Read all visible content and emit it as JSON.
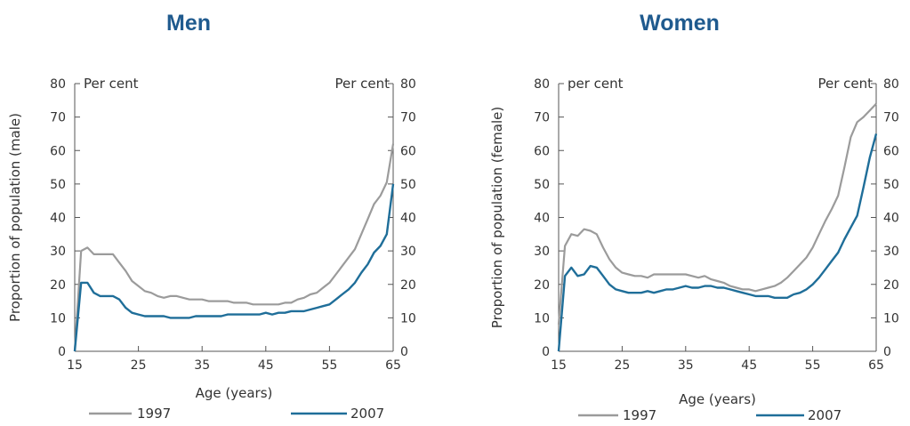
{
  "chart_data": [
    {
      "type": "line",
      "title": "Men",
      "xlabel": "Age (years)",
      "ylabel": "Proportion of population (male)",
      "unit_left": "Per cent",
      "unit_right": "Per cent",
      "xlim": [
        15,
        65
      ],
      "ylim": [
        0,
        80
      ],
      "xticks": [
        15,
        25,
        35,
        45,
        55,
        65
      ],
      "yticks": [
        0,
        10,
        20,
        30,
        40,
        50,
        60,
        70,
        80
      ],
      "legend_position": "bottom",
      "series": [
        {
          "name": "1997",
          "color": "#9b9b9b",
          "x": [
            15,
            16,
            17,
            18,
            19,
            20,
            21,
            22,
            23,
            24,
            25,
            26,
            27,
            28,
            29,
            30,
            31,
            32,
            33,
            34,
            35,
            36,
            37,
            38,
            39,
            40,
            41,
            42,
            43,
            44,
            45,
            46,
            47,
            48,
            49,
            50,
            51,
            52,
            53,
            54,
            55,
            56,
            57,
            58,
            59,
            60,
            61,
            62,
            63,
            64,
            65
          ],
          "y": [
            0,
            30,
            31,
            29,
            29,
            29,
            29,
            26.5,
            24,
            21,
            19.5,
            18,
            17.5,
            16.5,
            16,
            16.5,
            16.5,
            16,
            15.5,
            15.5,
            15.5,
            15,
            15,
            15,
            15,
            14.5,
            14.5,
            14.5,
            14,
            14,
            14,
            14,
            14,
            14.5,
            14.5,
            15.5,
            16,
            17,
            17.5,
            19,
            20.5,
            23,
            25.5,
            28,
            30.5,
            35,
            39.5,
            44,
            46.5,
            50.5,
            62
          ]
        },
        {
          "name": "2007",
          "color": "#1f6e99",
          "x": [
            15,
            16,
            17,
            18,
            19,
            20,
            21,
            22,
            23,
            24,
            25,
            26,
            27,
            28,
            29,
            30,
            31,
            32,
            33,
            34,
            35,
            36,
            37,
            38,
            39,
            40,
            41,
            42,
            43,
            44,
            45,
            46,
            47,
            48,
            49,
            50,
            51,
            52,
            53,
            54,
            55,
            56,
            57,
            58,
            59,
            60,
            61,
            62,
            63,
            64,
            65
          ],
          "y": [
            0,
            20.5,
            20.5,
            17.5,
            16.5,
            16.5,
            16.5,
            15.5,
            13,
            11.5,
            11,
            10.5,
            10.5,
            10.5,
            10.5,
            10,
            10,
            10,
            10,
            10.5,
            10.5,
            10.5,
            10.5,
            10.5,
            11,
            11,
            11,
            11,
            11,
            11,
            11.5,
            11,
            11.5,
            11.5,
            12,
            12,
            12,
            12.5,
            13,
            13.5,
            14,
            15.5,
            17,
            18.5,
            20.5,
            23.5,
            26,
            29.5,
            31.5,
            35,
            50
          ]
        }
      ]
    },
    {
      "type": "line",
      "title": "Women",
      "xlabel": "Age (years)",
      "ylabel": "Proportion of population (female)",
      "unit_left": "per cent",
      "unit_right": "Per cent",
      "xlim": [
        15,
        65
      ],
      "ylim": [
        0,
        80
      ],
      "xticks": [
        15,
        25,
        35,
        45,
        55,
        65
      ],
      "yticks": [
        0,
        10,
        20,
        30,
        40,
        50,
        60,
        70,
        80
      ],
      "legend_position": "bottom",
      "series": [
        {
          "name": "1997",
          "color": "#9b9b9b",
          "x": [
            15,
            16,
            17,
            18,
            19,
            20,
            21,
            22,
            23,
            24,
            25,
            26,
            27,
            28,
            29,
            30,
            31,
            32,
            33,
            34,
            35,
            36,
            37,
            38,
            39,
            40,
            41,
            42,
            43,
            44,
            45,
            46,
            47,
            48,
            49,
            50,
            51,
            52,
            53,
            54,
            55,
            56,
            57,
            58,
            59,
            60,
            61,
            62,
            63,
            64,
            65
          ],
          "y": [
            8,
            31.5,
            35,
            34.5,
            36.5,
            36,
            35,
            31,
            27.5,
            25,
            23.5,
            23,
            22.5,
            22.5,
            22,
            23,
            23,
            23,
            23,
            23,
            23,
            22.5,
            22,
            22.5,
            21.5,
            21,
            20.5,
            19.5,
            19,
            18.5,
            18.5,
            18,
            18.5,
            19,
            19.5,
            20.5,
            22,
            24,
            26,
            28,
            31,
            35,
            39,
            42.5,
            46.5,
            55,
            64,
            68.5,
            70,
            72,
            74
          ]
        },
        {
          "name": "2007",
          "color": "#1f6e99",
          "x": [
            15,
            16,
            17,
            18,
            19,
            20,
            21,
            22,
            23,
            24,
            25,
            26,
            27,
            28,
            29,
            30,
            31,
            32,
            33,
            34,
            35,
            36,
            37,
            38,
            39,
            40,
            41,
            42,
            43,
            44,
            45,
            46,
            47,
            48,
            49,
            50,
            51,
            52,
            53,
            54,
            55,
            56,
            57,
            58,
            59,
            60,
            61,
            62,
            63,
            64,
            65
          ],
          "y": [
            0,
            22.5,
            25,
            22.5,
            23,
            25.5,
            25,
            22.5,
            20,
            18.5,
            18,
            17.5,
            17.5,
            17.5,
            18,
            17.5,
            18,
            18.5,
            18.5,
            19,
            19.5,
            19,
            19,
            19.5,
            19.5,
            19,
            19,
            18.5,
            18,
            17.5,
            17,
            16.5,
            16.5,
            16.5,
            16,
            16,
            16,
            17,
            17.5,
            18.5,
            20,
            22,
            24.5,
            27,
            29.5,
            33.5,
            37,
            40.5,
            49,
            58,
            65
          ]
        }
      ]
    }
  ]
}
